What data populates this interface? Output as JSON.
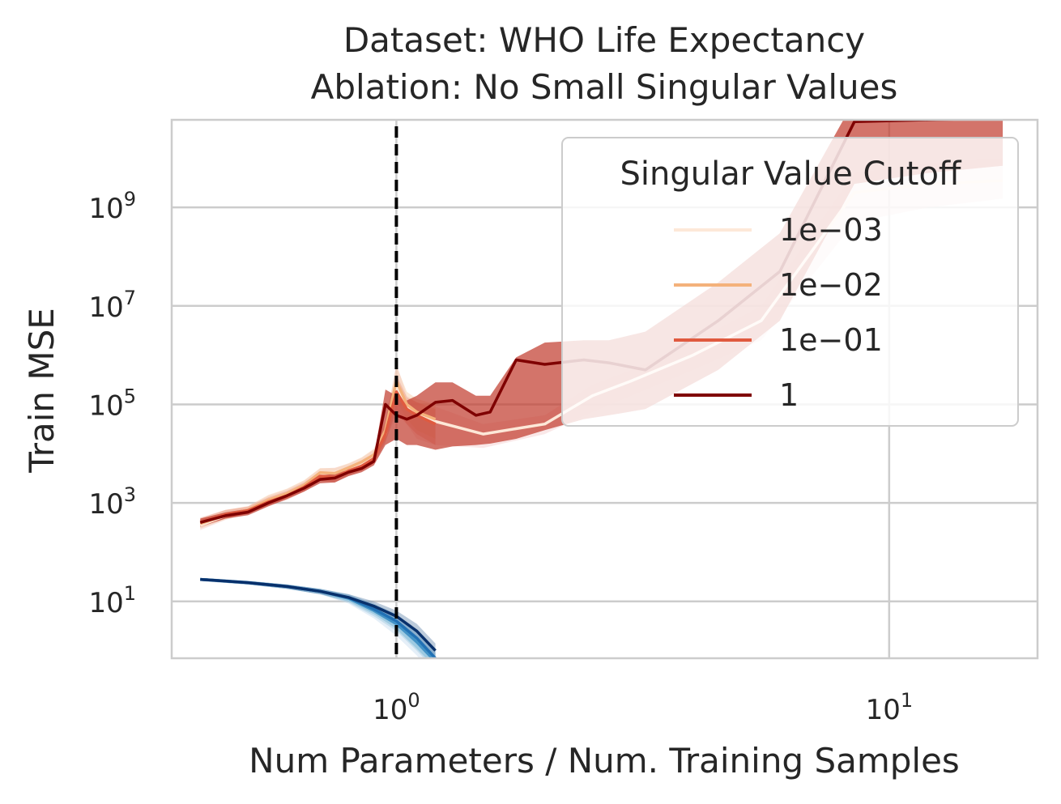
{
  "chart_data": {
    "type": "line",
    "title": "Dataset: WHO Life Expectancy",
    "subtitle": "Ablation: No Small Singular Values",
    "xlabel": "Num Parameters / Num. Training Samples",
    "ylabel": "Train MSE",
    "xscale": "log",
    "yscale": "log",
    "xlim": [
      0.35,
      20
    ],
    "ylim": [
      0.7,
      60000000000
    ],
    "xticks": [
      {
        "value": 1,
        "base": "10",
        "exp": "0"
      },
      {
        "value": 10,
        "base": "10",
        "exp": "1"
      }
    ],
    "yticks": [
      {
        "value": 10,
        "base": "10",
        "exp": "1"
      },
      {
        "value": 1000,
        "base": "10",
        "exp": "3"
      },
      {
        "value": 100000,
        "base": "10",
        "exp": "5"
      },
      {
        "value": 10000000,
        "base": "10",
        "exp": "7"
      },
      {
        "value": 1000000000,
        "base": "10",
        "exp": "9"
      }
    ],
    "grid": true,
    "vline": {
      "x": 1,
      "style": "dashed",
      "color": "#000000"
    },
    "legend": {
      "title": "Singular Value Cutoff",
      "position": "top-right"
    },
    "series": [
      {
        "name": "1e−03",
        "color": "#fde8d8",
        "band": "#f4cccc",
        "x": [
          0.4,
          0.45,
          0.5,
          0.55,
          0.6,
          0.65,
          0.7,
          0.75,
          0.8,
          0.85,
          0.9,
          0.95,
          1.0,
          1.05,
          1.1,
          1.2,
          1.5,
          2.0,
          2.5,
          3,
          4,
          5.5,
          8.5,
          12,
          17
        ],
        "y": [
          350,
          550,
          700,
          1100,
          1500,
          2200,
          4000,
          4200,
          5000,
          6500,
          9000,
          25000,
          250000,
          90000,
          60000,
          45000,
          25000,
          40000,
          150000,
          300000,
          1000000,
          5000000,
          2000000000,
          3000000000,
          3500000000
        ],
        "lo": [
          280,
          450,
          600,
          900,
          1200,
          1800,
          3200,
          3400,
          4000,
          5200,
          7000,
          18000,
          60000,
          40000,
          20000,
          15000,
          13000,
          25000,
          70000,
          150000,
          500000,
          2000000,
          500000000,
          1000000000,
          1500000000
        ],
        "hi": [
          450,
          700,
          850,
          1400,
          1900,
          2800,
          5000,
          5200,
          6200,
          8200,
          12000,
          40000,
          700000,
          150000,
          110000,
          90000,
          40000,
          60000,
          250000,
          500000,
          1800000,
          10000000,
          5000000000,
          8000000000,
          10000000000
        ]
      },
      {
        "name": "1e−02",
        "color": "#f4b27b",
        "band": "#f6c9a4",
        "x": [
          0.4,
          0.45,
          0.5,
          0.55,
          0.6,
          0.65,
          0.7,
          0.75,
          0.8,
          0.85,
          0.9,
          0.95,
          1.0,
          1.05,
          1.1,
          1.2
        ],
        "y": [
          380,
          560,
          720,
          1150,
          1550,
          2300,
          4100,
          4000,
          5200,
          6800,
          9500,
          30000,
          300000,
          100000,
          70000,
          50000
        ],
        "lo": [
          300,
          460,
          620,
          950,
          1250,
          1900,
          3300,
          3200,
          4100,
          5400,
          7500,
          20000,
          120000,
          50000,
          30000,
          20000
        ],
        "hi": [
          480,
          720,
          860,
          1450,
          1950,
          2900,
          5100,
          5100,
          6400,
          8400,
          12500,
          45000,
          600000,
          180000,
          130000,
          100000
        ]
      },
      {
        "name": "1e−01",
        "color": "#e05a3f",
        "band": "#ea9a88",
        "x": [
          0.4,
          0.45,
          0.5,
          0.55,
          0.6,
          0.65,
          0.7,
          0.75,
          0.8,
          0.85,
          0.9,
          0.95,
          1.0,
          1.05,
          1.1,
          1.2
        ],
        "y": [
          400,
          580,
          700,
          1050,
          1400,
          2100,
          3500,
          3300,
          4500,
          5600,
          8000,
          25000,
          180000,
          80000,
          60000,
          40000
        ],
        "lo": [
          320,
          480,
          600,
          880,
          1150,
          1700,
          2800,
          2600,
          3600,
          4500,
          6200,
          17000,
          80000,
          40000,
          25000,
          15000
        ],
        "hi": [
          500,
          720,
          840,
          1300,
          1750,
          2600,
          4400,
          4200,
          5600,
          7000,
          10000,
          38000,
          400000,
          140000,
          110000,
          80000
        ]
      },
      {
        "name": "1",
        "color": "#7f0000",
        "band": "#c0392b",
        "x": [
          0.4,
          0.45,
          0.5,
          0.55,
          0.6,
          0.65,
          0.7,
          0.75,
          0.8,
          0.85,
          0.9,
          0.95,
          1.0,
          1.05,
          1.1,
          1.2,
          1.3,
          1.45,
          1.55,
          1.75,
          2.0,
          2.4,
          2.7,
          3.2,
          4.5,
          6.0,
          8.5,
          12,
          17
        ],
        "y": [
          400,
          550,
          650,
          1000,
          1400,
          2000,
          3000,
          3200,
          4200,
          5000,
          7000,
          100000,
          60000,
          50000,
          60000,
          110000,
          120000,
          60000,
          70000,
          800000,
          650000,
          800000,
          700000,
          500000,
          5000000,
          50000000,
          55000000000,
          60000000000,
          65000000000
        ],
        "lo": [
          330,
          480,
          560,
          850,
          1200,
          1700,
          2500,
          2600,
          3500,
          4200,
          5800,
          15000,
          20000,
          15000,
          15000,
          12000,
          14000,
          15000,
          16000,
          20000,
          30000,
          50000,
          60000,
          80000,
          500000,
          5000000,
          3000000000,
          5000000000,
          7000000000
        ],
        "hi": [
          480,
          640,
          760,
          1200,
          1650,
          2400,
          3600,
          3900,
          5000,
          6000,
          8500,
          200000,
          150000,
          120000,
          150000,
          280000,
          280000,
          150000,
          150000,
          900000,
          1800000,
          2000000,
          2000000,
          3000000,
          30000000,
          300000000,
          150000000000,
          160000000000,
          170000000000
        ]
      },
      {
        "color": "#9ecae1",
        "band": "#c6dbef",
        "x": [
          0.4,
          0.5,
          0.6,
          0.7,
          0.8,
          0.9,
          1.0,
          1.1,
          1.2
        ],
        "y": [
          28,
          24,
          20,
          16,
          11,
          6,
          3,
          1.2,
          0.5
        ],
        "lo": [
          26,
          22,
          18,
          14,
          9,
          4.5,
          2,
          0.8,
          0.3
        ],
        "hi": [
          30,
          26,
          22,
          18,
          13,
          8,
          4.5,
          1.8,
          0.8
        ]
      },
      {
        "color": "#4292c6",
        "band": "#9ecae1",
        "x": [
          0.4,
          0.5,
          0.6,
          0.7,
          0.8,
          0.9,
          1.0,
          1.1,
          1.2
        ],
        "y": [
          28,
          24,
          20,
          16,
          11.5,
          6.5,
          3.5,
          1.5,
          0.6
        ],
        "lo": [
          26,
          22,
          18,
          14,
          9.5,
          5,
          2.5,
          1,
          0.4
        ],
        "hi": [
          30,
          26,
          22,
          18,
          13.5,
          8.5,
          5,
          2.2,
          0.9
        ]
      },
      {
        "color": "#2171b5",
        "band": "#6baed6",
        "x": [
          0.4,
          0.5,
          0.6,
          0.7,
          0.8,
          0.9,
          1.0,
          1.1,
          1.2
        ],
        "y": [
          28,
          24,
          20,
          16,
          12,
          7,
          4,
          1.8,
          0.7
        ],
        "lo": [
          26,
          22,
          18,
          14,
          10,
          5.5,
          3,
          1.2,
          0.45
        ],
        "hi": [
          30,
          26,
          22,
          18,
          14,
          9,
          5.5,
          2.6,
          1.0
        ]
      },
      {
        "color": "#08306b",
        "band": "#6a8caf",
        "x": [
          0.4,
          0.5,
          0.6,
          0.7,
          0.8,
          0.9,
          1.0,
          1.1,
          1.2
        ],
        "y": [
          28,
          24,
          20,
          16,
          12,
          8,
          5,
          2.5,
          1.0
        ],
        "lo": [
          26,
          22,
          18,
          14,
          10.5,
          6.5,
          3.8,
          1.8,
          0.7
        ],
        "hi": [
          30,
          26,
          22,
          18,
          14,
          10,
          6.5,
          3.5,
          1.4
        ]
      }
    ]
  }
}
